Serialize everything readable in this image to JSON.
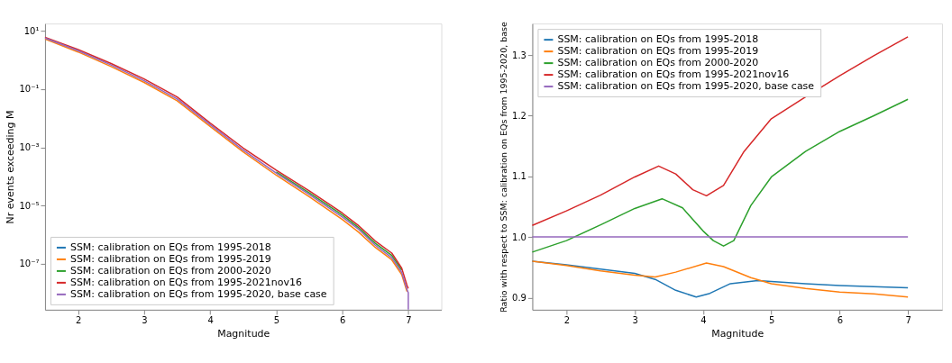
{
  "chart_data": [
    {
      "type": "line",
      "xlabel": "Magnitude",
      "ylabel": "Nr events exceeding M",
      "log": "y",
      "legend": "bottom left",
      "grid": false,
      "marker": "none",
      "line_style": "solid",
      "xlim": [
        1.5,
        7.5
      ],
      "xticks": [
        2,
        3,
        4,
        5,
        6,
        7
      ],
      "ylim": [
        2.6e-09,
        18
      ],
      "yticks": [
        {
          "value": 10,
          "label": "10¹"
        },
        {
          "value": 0.1,
          "label": "10⁻¹"
        },
        {
          "value": 0.001,
          "label": "10⁻³"
        },
        {
          "value": 1e-05,
          "label": "10⁻⁵"
        },
        {
          "value": 1e-07,
          "label": "10⁻⁷"
        }
      ],
      "x": [
        1.5,
        2,
        2.5,
        3,
        3.5,
        4,
        4.5,
        5,
        5.5,
        6,
        6.25,
        6.5,
        6.75,
        6.9,
        6.98,
        7,
        7
      ],
      "series": [
        {
          "name": "SSM: calibration on EQs from 1995-2018",
          "color": "#1f77b4",
          "values": [
            null,
            null,
            null,
            null,
            null,
            null,
            null,
            null,
            null,
            null,
            null,
            null,
            null,
            null,
            null,
            null,
            null
          ]
        },
        {
          "name": "SSM: calibration on EQs from 1995-2019",
          "color": "#ff7f0e",
          "values": [
            5.3,
            1.9,
            0.6,
            0.17,
            0.04,
            0.0052,
            0.0007,
            0.00011,
            2e-05,
            3.3e-06,
            1.2e-06,
            3.6e-07,
            1.35e-07,
            4.2e-08,
            1.1e-08,
            null,
            null
          ]
        },
        {
          "name": "SSM: calibration on EQs from 2000-2020",
          "color": "#2ca02c",
          "values": [
            null,
            null,
            null,
            null,
            null,
            null,
            null,
            0.000143,
            2.7e-05,
            4.7e-06,
            1.7e-06,
            5e-07,
            1.9e-07,
            6e-08,
            null,
            null,
            null
          ]
        },
        {
          "name": "SSM: calibration on EQs from 1995-2021nov16",
          "color": "#d62728",
          "values": [
            6.1,
            2.3,
            0.76,
            0.225,
            0.054,
            0.0068,
            0.00095,
            0.000165,
            3.2e-05,
            5.5e-06,
            2e-06,
            6e-07,
            2.3e-07,
            7e-08,
            1.8e-08,
            1.4e-08,
            null
          ]
        },
        {
          "name": "SSM: calibration on EQs from 1995-2020, base case",
          "color": "#9467bd",
          "values": [
            5.7,
            2.1,
            0.68,
            0.195,
            0.046,
            0.006,
            0.0008,
            0.00013,
            2.4e-05,
            4e-06,
            1.5e-06,
            4.3e-07,
            1.6e-07,
            5e-08,
            1.3e-08,
            1e-08,
            2.6e-09
          ]
        }
      ]
    },
    {
      "type": "line",
      "xlabel": "Magnitude",
      "ylabel": "Ratio with respect to SSM: calibration on EQs from 1995-2020, base",
      "legend": "top left",
      "grid": false,
      "marker": "none",
      "line_style": "solid",
      "xlim": [
        1.5,
        7.5
      ],
      "xticks": [
        2,
        3,
        4,
        5,
        6,
        7
      ],
      "ylim": [
        0.88,
        1.352
      ],
      "yticks": [
        {
          "value": 0.9,
          "label": "0.9"
        },
        {
          "value": 1.0,
          "label": "1.0"
        },
        {
          "value": 1.1,
          "label": "1.1"
        },
        {
          "value": 1.2,
          "label": "1.2"
        },
        {
          "value": 1.3,
          "label": "1.3"
        }
      ],
      "series": [
        {
          "name": "SSM: calibration on EQs from 1995-2018",
          "color": "#1f77b4",
          "x": [
            1.5,
            2,
            2.5,
            3,
            3.3,
            3.6,
            3.9,
            4.1,
            4.4,
            4.8,
            5.5,
            6,
            7
          ],
          "values": [
            0.96,
            0.954,
            0.947,
            0.94,
            0.93,
            0.912,
            0.901,
            0.907,
            0.923,
            0.928,
            0.923,
            0.92,
            0.916
          ]
        },
        {
          "name": "SSM: calibration on EQs from 1995-2019",
          "color": "#ff7f0e",
          "x": [
            1.5,
            2,
            2.5,
            3,
            3.3,
            3.6,
            4.05,
            4.3,
            4.7,
            5,
            5.5,
            6,
            6.5,
            7
          ],
          "values": [
            0.96,
            0.953,
            0.944,
            0.937,
            0.934,
            0.942,
            0.957,
            0.951,
            0.933,
            0.923,
            0.915,
            0.909,
            0.906,
            0.901
          ]
        },
        {
          "name": "SSM: calibration on EQs from 2000-2020",
          "color": "#2ca02c",
          "x": [
            1.5,
            2,
            2.5,
            3,
            3.4,
            3.7,
            4,
            4.15,
            4.3,
            4.45,
            4.7,
            5,
            5.5,
            6,
            6.5,
            7
          ],
          "values": [
            0.975,
            0.994,
            1.02,
            1.047,
            1.063,
            1.048,
            1.01,
            0.994,
            0.985,
            0.994,
            1.052,
            1.099,
            1.141,
            1.174,
            1.2,
            1.227
          ]
        },
        {
          "name": "SSM: calibration on EQs from 1995-2021nov16",
          "color": "#d62728",
          "x": [
            1.5,
            2,
            2.5,
            3,
            3.35,
            3.6,
            3.85,
            4.05,
            4.3,
            4.6,
            5,
            5.5,
            6,
            6.5,
            7
          ],
          "values": [
            1.019,
            1.043,
            1.069,
            1.099,
            1.117,
            1.104,
            1.078,
            1.068,
            1.085,
            1.141,
            1.195,
            1.231,
            1.266,
            1.299,
            1.33
          ]
        },
        {
          "name": "SSM: calibration on EQs from 1995-2020, base case",
          "color": "#9467bd",
          "x": [
            1.5,
            7
          ],
          "values": [
            1.0,
            1.0
          ]
        }
      ]
    }
  ]
}
